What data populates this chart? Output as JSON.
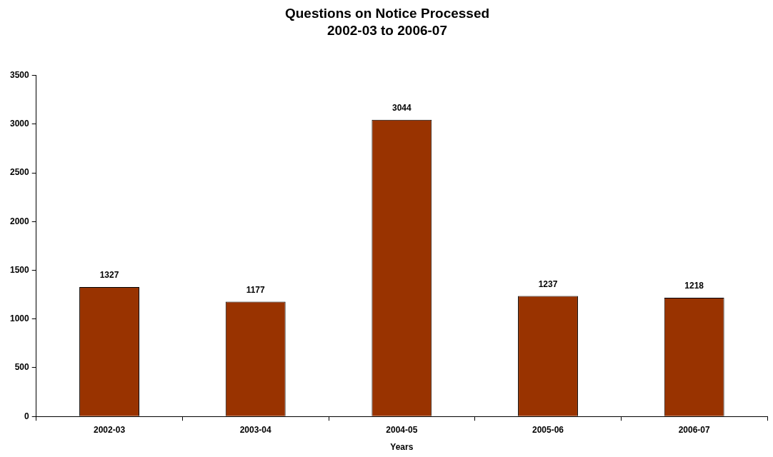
{
  "chart_data": {
    "type": "bar",
    "title": "Questions on Notice Processed",
    "subtitle": "2002-03 to 2006-07",
    "xlabel": "Years",
    "categories": [
      "2002-03",
      "2003-04",
      "2004-05",
      "2005-06",
      "2006-07"
    ],
    "values": [
      1327,
      1177,
      3044,
      1237,
      1218
    ],
    "color": "#993300",
    "ylim": [
      0,
      3500
    ],
    "yticks": [
      0,
      500,
      1000,
      1500,
      2000,
      2500,
      3000,
      3500
    ],
    "data_labels": true
  }
}
